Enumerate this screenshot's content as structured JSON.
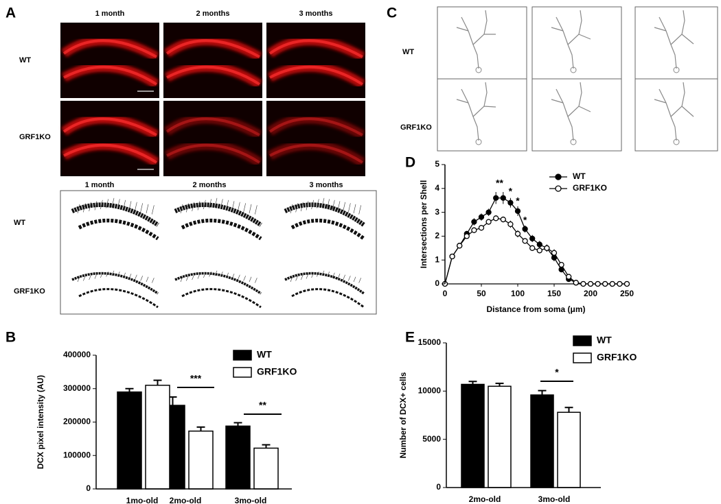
{
  "panel_a": {
    "label": "A",
    "image_columns": [
      "1 month",
      "2 months",
      "3 months"
    ],
    "image_rows": [
      "WT",
      "GRF1KO"
    ],
    "drawing_columns": [
      "1 month",
      "2 months",
      "3 months"
    ],
    "drawing_rows": [
      "WT",
      "GRF1KO"
    ]
  },
  "panel_c": {
    "label": "C",
    "rows": [
      "WT",
      "GRF1KO"
    ]
  },
  "chart_data": [
    {
      "type": "bar",
      "panel": "B",
      "ylabel": "DCX pixel intensity (AU)",
      "categories": [
        "1mo-old",
        "2mo-old",
        "3mo-old"
      ],
      "series": [
        {
          "name": "WT",
          "color": "#000000",
          "values": [
            290000,
            250000,
            188000
          ],
          "errors": [
            10000,
            25000,
            10000
          ]
        },
        {
          "name": "GRF1KO",
          "color": "#ffffff",
          "values": [
            310000,
            173000,
            122000
          ],
          "errors": [
            15000,
            12000,
            10000
          ]
        }
      ],
      "ylim": [
        0,
        400000
      ],
      "yticks": [
        0,
        100000,
        200000,
        300000,
        400000
      ],
      "annotations": [
        {
          "text": "***"
        },
        {
          "text": "**"
        }
      ]
    },
    {
      "type": "line",
      "panel": "D",
      "xlabel": "Distance from soma (μm)",
      "ylabel": "Intersections per Shell",
      "x": [
        0,
        10,
        20,
        30,
        40,
        50,
        60,
        70,
        80,
        90,
        100,
        110,
        120,
        130,
        140,
        150,
        160,
        170,
        180,
        190,
        200,
        210,
        220,
        230,
        240,
        250
      ],
      "series": [
        {
          "name": "WT",
          "color": "#000000",
          "marker": "filled",
          "values": [
            0,
            1.15,
            1.6,
            2.1,
            2.6,
            2.8,
            3.0,
            3.6,
            3.6,
            3.4,
            3.05,
            2.3,
            1.9,
            1.65,
            1.5,
            1.1,
            0.6,
            0.2,
            0.05,
            0,
            0,
            0,
            0,
            0,
            0,
            0
          ],
          "errors": [
            0,
            0.05,
            0.1,
            0.12,
            0.15,
            0.15,
            0.15,
            0.25,
            0.25,
            0.2,
            0.2,
            0.15,
            0.15,
            0.15,
            0.15,
            0.15,
            0.1,
            0.05,
            0.02,
            0,
            0,
            0,
            0,
            0,
            0,
            0
          ]
        },
        {
          "name": "GRF1KO",
          "color": "#000000",
          "marker": "open",
          "values": [
            0,
            1.15,
            1.6,
            2.0,
            2.25,
            2.35,
            2.6,
            2.75,
            2.7,
            2.5,
            2.1,
            1.8,
            1.5,
            1.4,
            1.5,
            1.3,
            0.8,
            0.3,
            0.05,
            0,
            0,
            0,
            0,
            0,
            0,
            0
          ],
          "errors": [
            0,
            0.05,
            0.1,
            0.1,
            0.12,
            0.12,
            0.12,
            0.12,
            0.12,
            0.15,
            0.15,
            0.12,
            0.12,
            0.12,
            0.15,
            0.15,
            0.1,
            0.05,
            0.02,
            0,
            0,
            0,
            0,
            0,
            0,
            0
          ]
        }
      ],
      "xlim": [
        0,
        250
      ],
      "xticks": [
        0,
        50,
        100,
        150,
        200,
        250
      ],
      "ylim": [
        0,
        5
      ],
      "yticks": [
        0,
        1,
        2,
        3,
        4,
        5
      ],
      "annotations": [
        {
          "text": "**"
        },
        {
          "text": "*"
        },
        {
          "text": "*"
        },
        {
          "text": "*"
        }
      ]
    },
    {
      "type": "bar",
      "panel": "E",
      "ylabel": "Number of DCX+ cells",
      "categories": [
        "2mo-old",
        "3mo-old"
      ],
      "series": [
        {
          "name": "WT",
          "color": "#000000",
          "values": [
            10700,
            9600
          ],
          "errors": [
            300,
            450
          ]
        },
        {
          "name": "GRF1KO",
          "color": "#ffffff",
          "values": [
            10500,
            7800
          ],
          "errors": [
            300,
            500
          ]
        }
      ],
      "ylim": [
        0,
        15000
      ],
      "yticks": [
        0,
        5000,
        10000,
        15000
      ],
      "annotations": [
        {
          "text": "*"
        }
      ]
    }
  ]
}
